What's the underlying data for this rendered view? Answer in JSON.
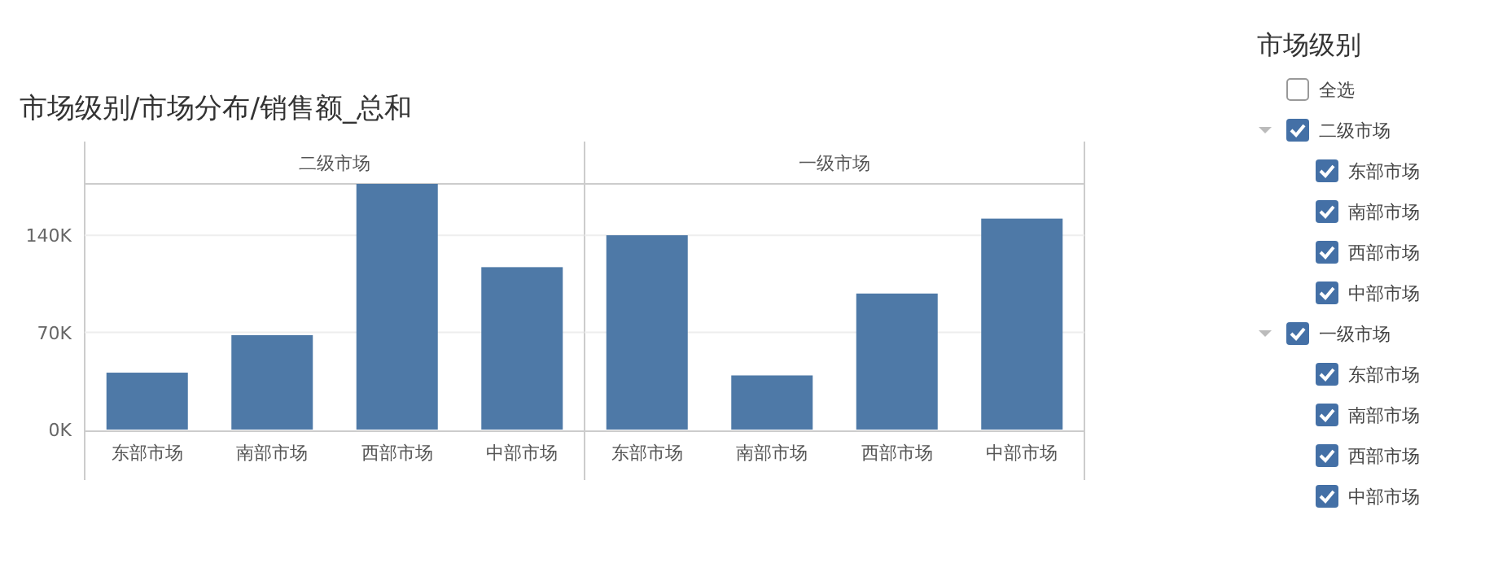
{
  "chart_data": [
    {
      "type": "bar",
      "title": "市场级别/市场分布/销售额_总和",
      "subtitle": "二级市场",
      "categories": [
        "东部市场",
        "南部市场",
        "西部市场",
        "中部市场"
      ],
      "values": [
        41,
        68,
        177,
        117
      ],
      "color": "#4e79a7",
      "ylim": [
        0,
        177
      ],
      "yticks": [
        {
          "value": 0,
          "label": "0K"
        },
        {
          "value": 70,
          "label": "70K"
        },
        {
          "value": 140,
          "label": "140K"
        }
      ],
      "grid": "y"
    },
    {
      "type": "bar",
      "subtitle": "一级市场",
      "categories": [
        "东部市场",
        "南部市场",
        "西部市场",
        "中部市场"
      ],
      "values": [
        140,
        39,
        98,
        152
      ],
      "color": "#4e79a7",
      "ylim": [
        0,
        177
      ],
      "yticks": [
        {
          "value": 0,
          "label": null
        },
        {
          "value": 70,
          "label": null
        },
        {
          "value": 140,
          "label": null
        }
      ],
      "grid": "y",
      "tick_labels": "x"
    },
    {
      "type": "other",
      "title": "市场级别",
      "annotations": [
        "全选",
        "二级市场",
        "东部市场",
        "南部市场",
        "西部市场",
        "中部市场",
        "一级市场",
        "东部市场",
        "南部市场",
        "西部市场",
        "中部市场"
      ]
    }
  ]
}
